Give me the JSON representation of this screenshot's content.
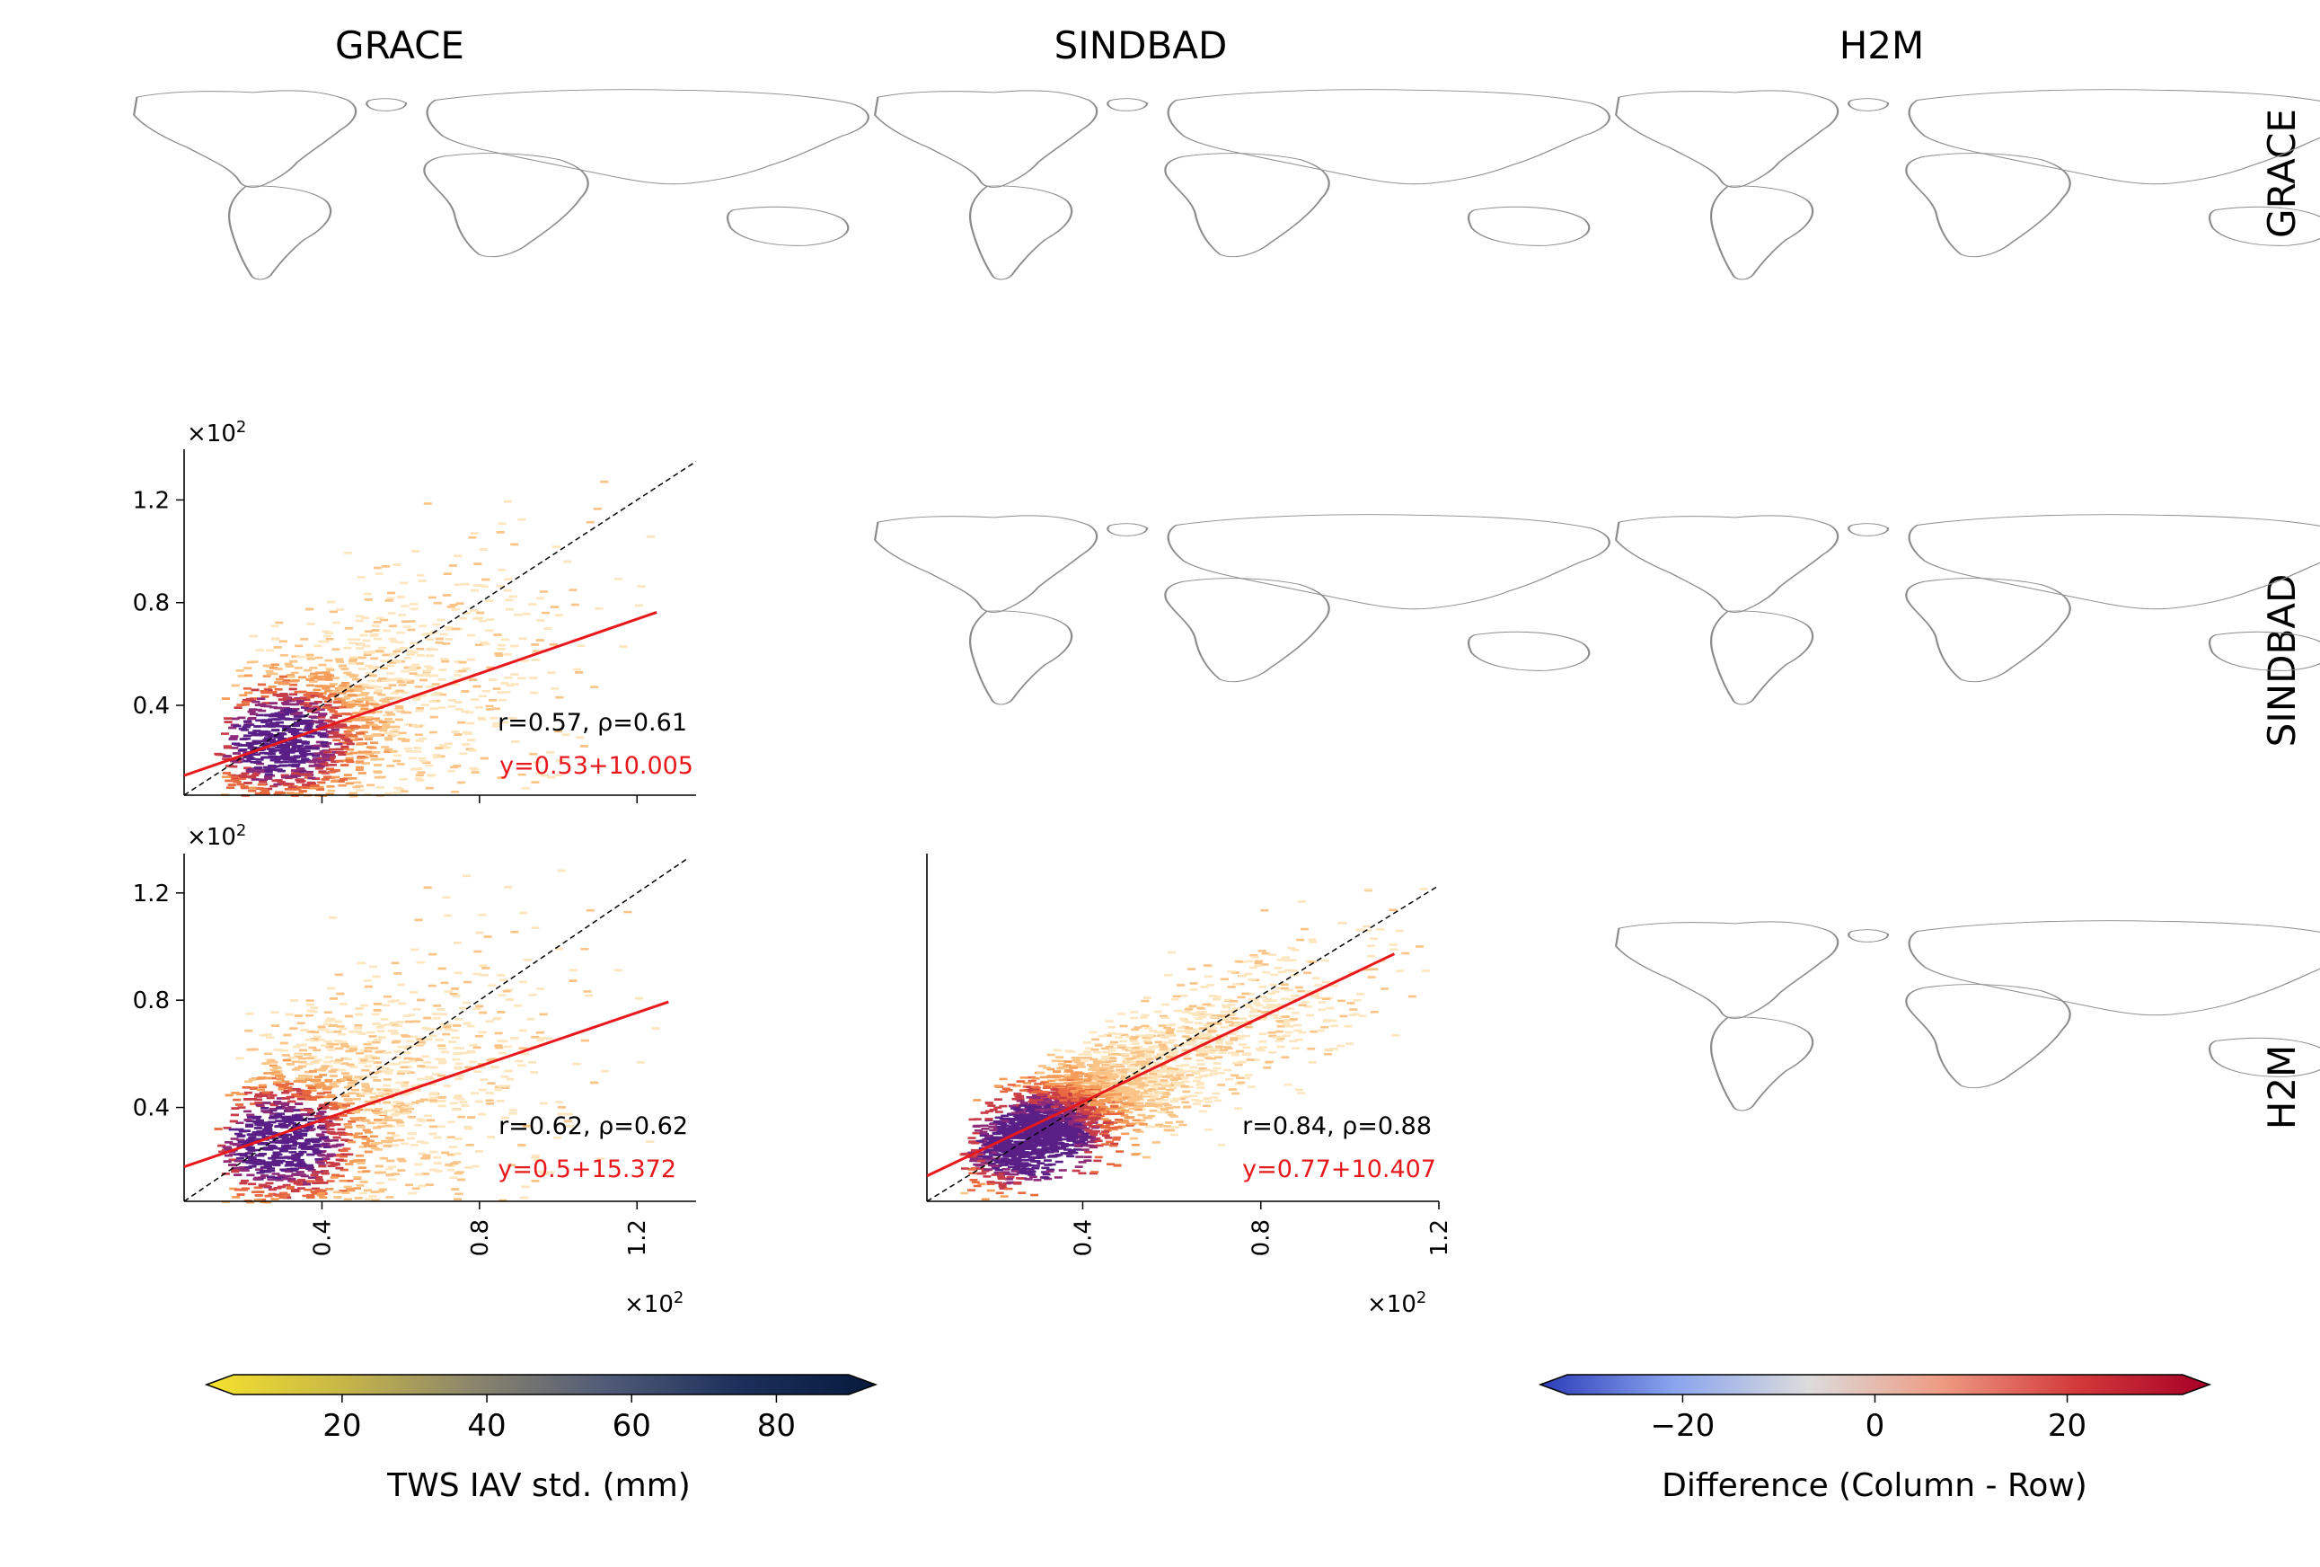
{
  "figure": {
    "column_titles": [
      "GRACE",
      "SINDBAD",
      "H2M"
    ],
    "row_titles": [
      "GRACE",
      "SINDBAD",
      "H2M"
    ],
    "axis_multiplier": "×10",
    "axis_multiplier_exp": "2"
  },
  "colorbars": {
    "std": {
      "label": "TWS IAV std. (mm)",
      "ticks": [
        "20",
        "40",
        "60",
        "80"
      ],
      "range": [
        5,
        90
      ],
      "colors": [
        "#f6e22c",
        "#c8b747",
        "#8b856c",
        "#4f5a77",
        "#1c2f5a",
        "#061a3d"
      ]
    },
    "diff": {
      "label": "Difference (Column - Row)",
      "ticks": [
        "−20",
        "0",
        "20"
      ],
      "range": [
        -32,
        32
      ],
      "colors": [
        "#2a3cb8",
        "#8aa5ee",
        "#dcdcdc",
        "#ee9b82",
        "#d33a3a",
        "#a60026"
      ]
    }
  },
  "chart_data": [
    {
      "type": "scatter",
      "panel": "SINDBAD vs GRACE",
      "xlabel": "",
      "ylabel": "",
      "xlim": [
        0.05,
        1.35
      ],
      "ylim": [
        0.05,
        1.38
      ],
      "xticks": [
        "0.4",
        "0.8",
        "1.2"
      ],
      "yticks": [
        "0.4",
        "0.8",
        "1.2"
      ],
      "stats_line1": "r=0.57, ρ=0.61",
      "fit_label": "y=0.53+10.005",
      "fit": {
        "slope": 0.53,
        "intercept": 0.10005
      },
      "fit_range": [
        0.05,
        1.25
      ]
    },
    {
      "type": "scatter",
      "panel": "H2M vs GRACE",
      "xlabel": "",
      "ylabel": "",
      "xlim": [
        0.05,
        1.35
      ],
      "ylim": [
        0.05,
        1.33
      ],
      "xticks": [
        "0.4",
        "0.8",
        "1.2"
      ],
      "yticks": [
        "0.4",
        "0.8",
        "1.2"
      ],
      "stats_line1": "r=0.62, ρ=0.62",
      "fit_label": "y=0.5+15.372",
      "fit": {
        "slope": 0.5,
        "intercept": 0.15372
      },
      "fit_range": [
        0.05,
        1.28
      ]
    },
    {
      "type": "scatter",
      "panel": "H2M vs SINDBAD",
      "xlabel": "",
      "ylabel": "",
      "xlim": [
        0.05,
        1.2
      ],
      "ylim": [
        0.05,
        1.3
      ],
      "xticks": [
        "0.4",
        "0.8",
        "1.2"
      ],
      "yticks": [],
      "stats_line1": "r=0.84, ρ=0.88",
      "fit_label": "y=0.77+10.407",
      "fit": {
        "slope": 0.77,
        "intercept": 0.10407
      },
      "fit_range": [
        0.05,
        1.1
      ]
    }
  ]
}
